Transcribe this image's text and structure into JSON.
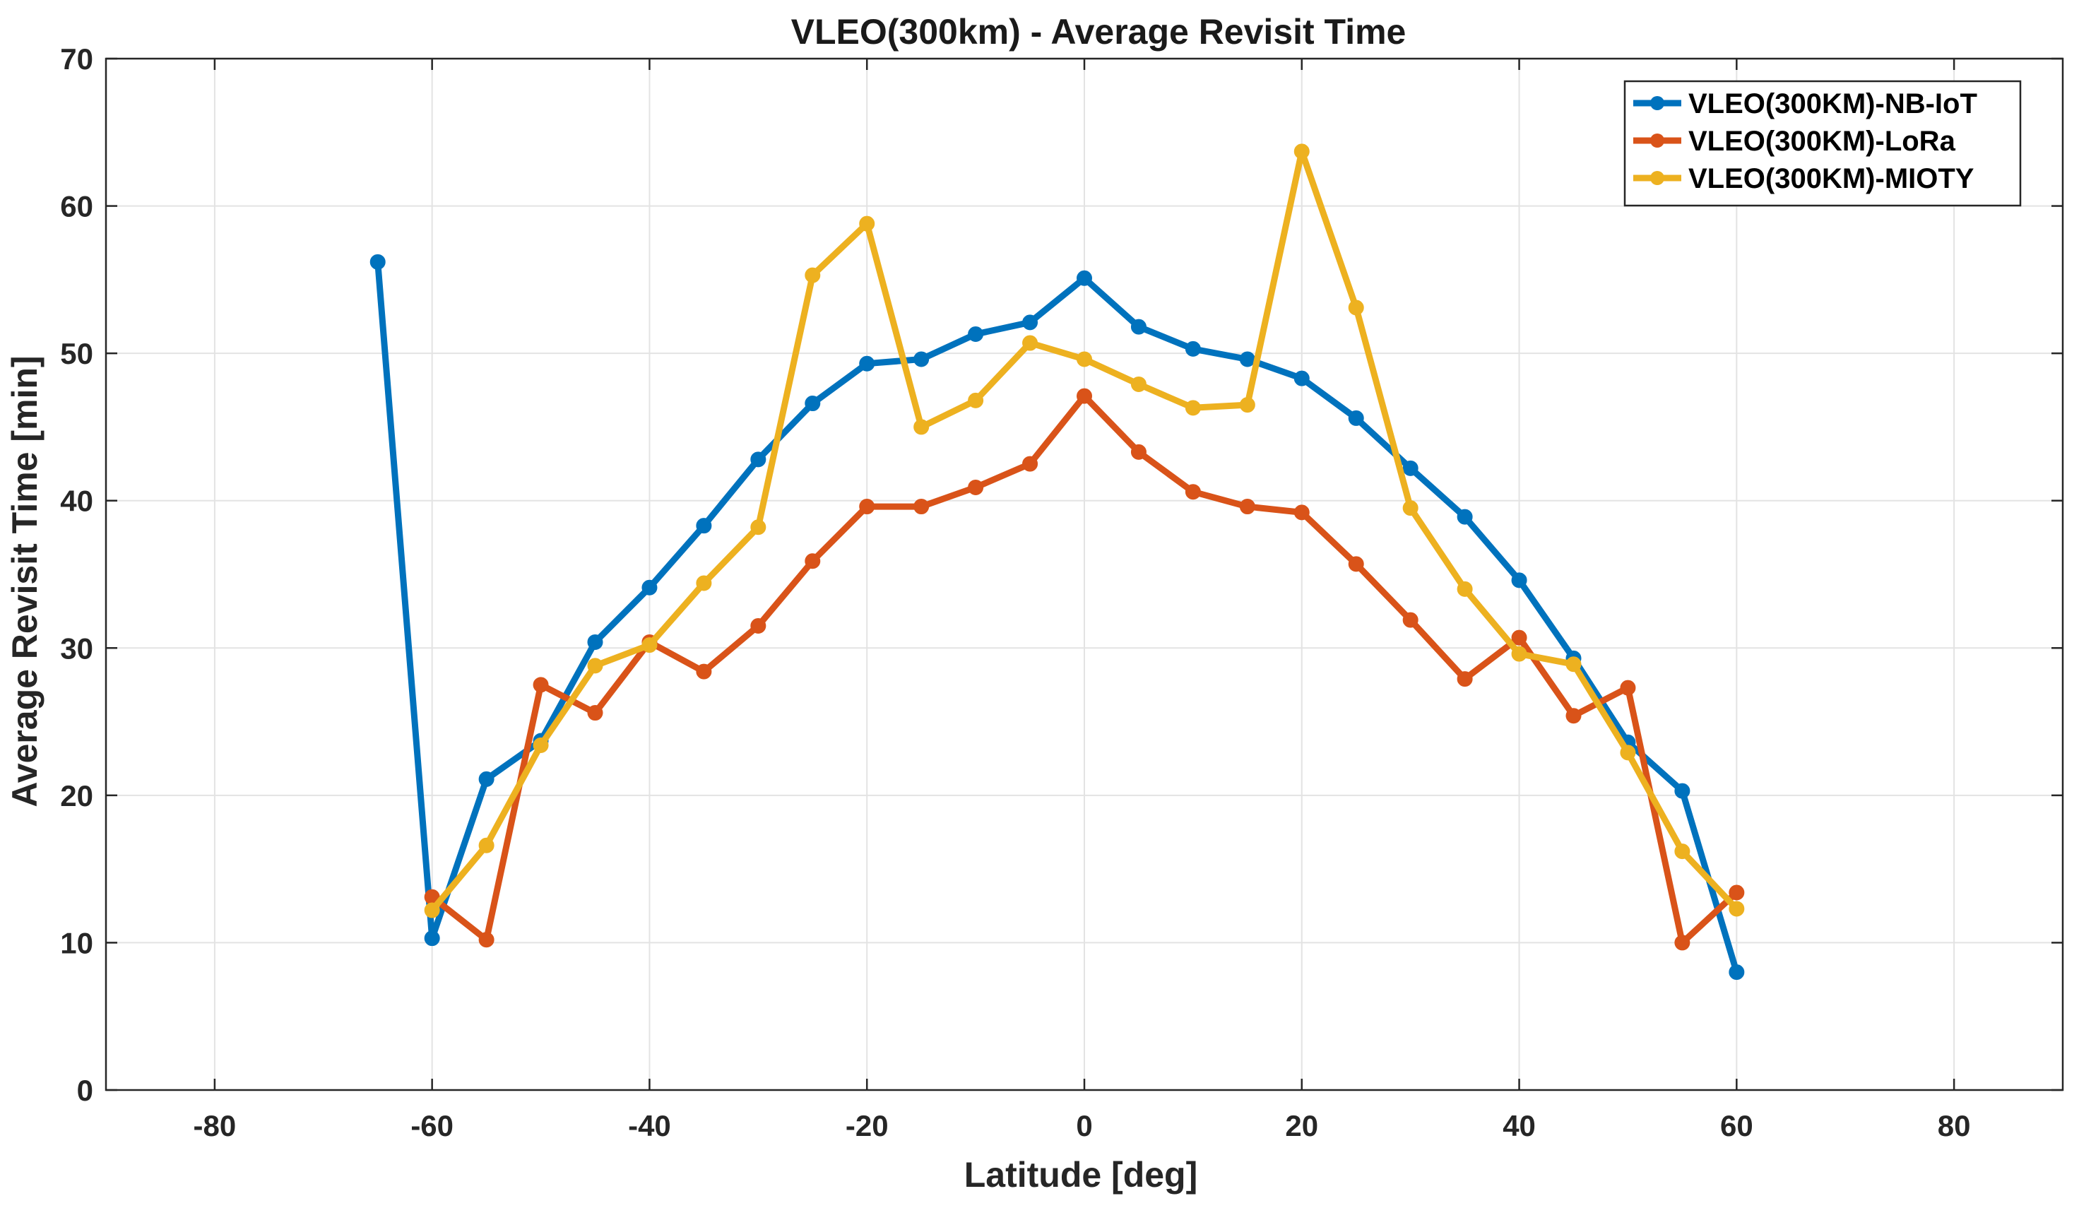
{
  "chart_data": {
    "type": "line",
    "title": "VLEO(300km) - Average Revisit Time",
    "xlabel": "Latitude [deg]",
    "ylabel": "Average Revisit Time [min]",
    "xlim": [
      -90,
      90
    ],
    "ylim": [
      0,
      70
    ],
    "xticks": [
      -80,
      -60,
      -40,
      -20,
      0,
      20,
      40,
      60,
      80
    ],
    "xtick_labels": [
      "-80",
      "-60",
      "-40",
      "-20",
      "0",
      "20",
      "40",
      "60",
      "80"
    ],
    "yticks": [
      0,
      10,
      20,
      30,
      40,
      50,
      60,
      70
    ],
    "ytick_labels": [
      "0",
      "10",
      "20",
      "30",
      "40",
      "50",
      "60",
      "70"
    ],
    "grid": true,
    "legend_position": "top-right",
    "series": [
      {
        "name": "VLEO(300KM)-NB-IoT",
        "color": "#0072BD",
        "x": [
          -65,
          -60,
          -55,
          -50,
          -45,
          -40,
          -35,
          -30,
          -25,
          -20,
          -15,
          -10,
          -5,
          0,
          5,
          10,
          15,
          20,
          25,
          30,
          35,
          40,
          45,
          50,
          55,
          60
        ],
        "y": [
          56.2,
          10.3,
          21.1,
          23.7,
          30.4,
          34.1,
          38.3,
          42.8,
          46.6,
          49.3,
          49.6,
          51.3,
          52.1,
          55.1,
          51.8,
          50.3,
          49.6,
          48.3,
          45.6,
          42.2,
          38.9,
          34.6,
          29.3,
          23.6,
          20.3,
          8.0
        ]
      },
      {
        "name": "VLEO(300KM)-LoRa",
        "color": "#D95319",
        "x": [
          -60,
          -55,
          -50,
          -45,
          -40,
          -35,
          -30,
          -25,
          -20,
          -15,
          -10,
          -5,
          0,
          5,
          10,
          15,
          20,
          25,
          30,
          35,
          40,
          45,
          50,
          55,
          60
        ],
        "y": [
          13.1,
          10.2,
          27.5,
          25.6,
          30.4,
          28.4,
          31.5,
          35.9,
          39.6,
          39.6,
          40.9,
          42.5,
          47.1,
          43.3,
          40.6,
          39.6,
          39.2,
          35.7,
          31.9,
          27.9,
          30.7,
          25.4,
          27.3,
          10.0,
          13.4
        ]
      },
      {
        "name": "VLEO(300KM)-MIOTY",
        "color": "#EDB120",
        "x": [
          -60,
          -55,
          -50,
          -45,
          -40,
          -35,
          -30,
          -25,
          -20,
          -15,
          -10,
          -5,
          0,
          5,
          10,
          15,
          20,
          25,
          30,
          35,
          40,
          45,
          50,
          55,
          60
        ],
        "y": [
          12.2,
          16.6,
          23.4,
          28.8,
          30.2,
          34.4,
          38.2,
          55.3,
          58.8,
          45.0,
          46.8,
          50.7,
          49.6,
          47.9,
          46.3,
          46.5,
          63.7,
          53.1,
          39.5,
          34.0,
          29.6,
          28.9,
          22.9,
          16.2,
          12.3
        ]
      }
    ]
  }
}
